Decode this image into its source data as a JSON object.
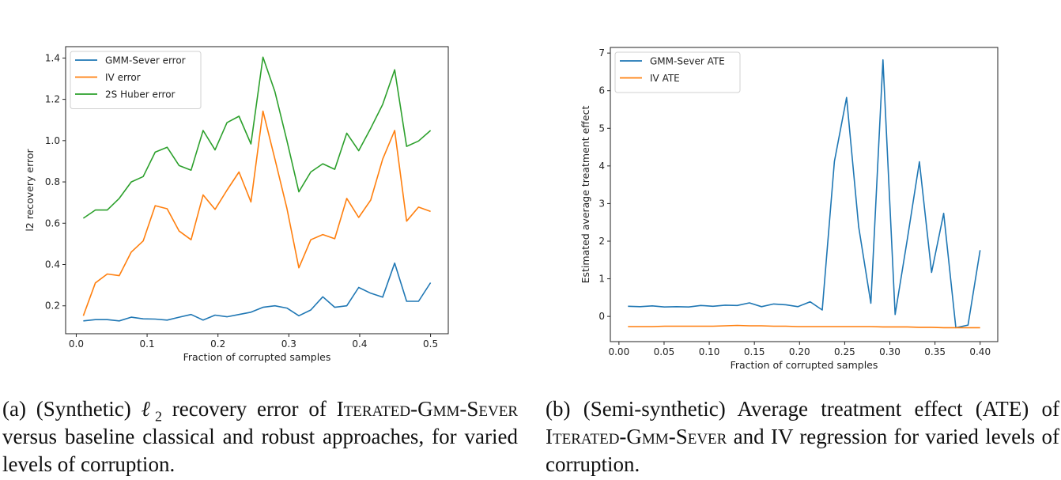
{
  "chart_data": [
    {
      "type": "line",
      "title": "",
      "xlabel": "Fraction of corrupted samples",
      "ylabel": "l2 recovery error",
      "xlim": [
        -0.015,
        0.525
      ],
      "ylim": [
        0.065,
        1.455
      ],
      "xticks": [
        0.0,
        0.1,
        0.2,
        0.3,
        0.4,
        0.5
      ],
      "xtick_labels": [
        "0.0",
        "0.1",
        "0.2",
        "0.3",
        "0.4",
        "0.5"
      ],
      "yticks": [
        0.2,
        0.4,
        0.6,
        0.8,
        1.0,
        1.2,
        1.4
      ],
      "ytick_labels": [
        "0.2",
        "0.4",
        "0.6",
        "0.8",
        "1.0",
        "1.2",
        "1.4"
      ],
      "grid": false,
      "legend_position": "top-left",
      "x_range": [
        0.01,
        0.5
      ],
      "n_points": 30,
      "series": [
        {
          "name": "GMM-Sever error",
          "color": "#1f77b4",
          "values": [
            0.127,
            0.133,
            0.133,
            0.127,
            0.145,
            0.137,
            0.136,
            0.131,
            0.145,
            0.158,
            0.131,
            0.155,
            0.147,
            0.158,
            0.169,
            0.193,
            0.2,
            0.189,
            0.152,
            0.18,
            0.244,
            0.193,
            0.2,
            0.289,
            0.261,
            0.242,
            0.407,
            0.222,
            0.222,
            0.312
          ]
        },
        {
          "name": "IV error",
          "color": "#ff7f0e",
          "values": [
            0.152,
            0.311,
            0.354,
            0.346,
            0.46,
            0.514,
            0.685,
            0.67,
            0.562,
            0.52,
            0.737,
            0.667,
            0.76,
            0.848,
            0.703,
            1.143,
            0.911,
            0.672,
            0.384,
            0.52,
            0.545,
            0.525,
            0.72,
            0.628,
            0.712,
            0.91,
            1.049,
            0.61,
            0.678,
            0.657
          ]
        },
        {
          "name": "2S Huber error",
          "color": "#2ca02c",
          "values": [
            0.624,
            0.664,
            0.664,
            0.72,
            0.8,
            0.826,
            0.944,
            0.968,
            0.879,
            0.857,
            1.049,
            0.955,
            1.087,
            1.118,
            0.984,
            1.404,
            1.237,
            1.0,
            0.752,
            0.848,
            0.888,
            0.861,
            1.036,
            0.951,
            1.06,
            1.175,
            1.343,
            0.972,
            0.998,
            1.049
          ]
        }
      ]
    },
    {
      "type": "line",
      "title": "",
      "xlabel": "Fraction of corrupted samples",
      "ylabel": "Estimated average treatment effect",
      "xlim": [
        -0.0095,
        0.4195
      ],
      "ylim": [
        -0.67,
        7.15
      ],
      "xticks": [
        0.0,
        0.05,
        0.1,
        0.15,
        0.2,
        0.25,
        0.3,
        0.35,
        0.4
      ],
      "xtick_labels": [
        "0.00",
        "0.05",
        "0.10",
        "0.15",
        "0.20",
        "0.25",
        "0.30",
        "0.35",
        "0.40"
      ],
      "yticks": [
        0,
        1,
        2,
        3,
        4,
        5,
        6,
        7
      ],
      "ytick_labels": [
        "0",
        "1",
        "2",
        "3",
        "4",
        "5",
        "6",
        "7"
      ],
      "grid": false,
      "legend_position": "top-left",
      "x_range": [
        0.01,
        0.4
      ],
      "n_points": 30,
      "series": [
        {
          "name": "GMM-Sever ATE",
          "color": "#1f77b4",
          "values": [
            0.27,
            0.26,
            0.28,
            0.25,
            0.26,
            0.25,
            0.29,
            0.27,
            0.3,
            0.29,
            0.36,
            0.26,
            0.33,
            0.31,
            0.26,
            0.39,
            0.17,
            4.12,
            5.82,
            2.38,
            0.35,
            6.82,
            0.05,
            2.05,
            4.11,
            1.17,
            2.74,
            -0.3,
            -0.23,
            1.76
          ]
        },
        {
          "name": "IV ATE",
          "color": "#ff7f0e",
          "values": [
            -0.27,
            -0.27,
            -0.27,
            -0.26,
            -0.26,
            -0.26,
            -0.26,
            -0.26,
            -0.25,
            -0.24,
            -0.25,
            -0.25,
            -0.26,
            -0.26,
            -0.27,
            -0.27,
            -0.27,
            -0.27,
            -0.27,
            -0.27,
            -0.27,
            -0.28,
            -0.28,
            -0.28,
            -0.29,
            -0.29,
            -0.3,
            -0.3,
            -0.3,
            -0.3
          ]
        }
      ]
    }
  ],
  "captions": {
    "a": {
      "prefix": "(a) (Synthetic) ",
      "ell": "ℓ",
      "sub": "2",
      "mid": " recovery error of ",
      "method": "Iterated-Gmm-Sever",
      "suffix": " versus baseline classical and robust approaches, for varied levels of corruption."
    },
    "b": {
      "prefix": "(b) (Semi-synthetic) Average treatment effect (ATE) of ",
      "method": "Iterated-Gmm-Sever",
      "suffix": " and IV regression for varied levels of corruption."
    }
  }
}
